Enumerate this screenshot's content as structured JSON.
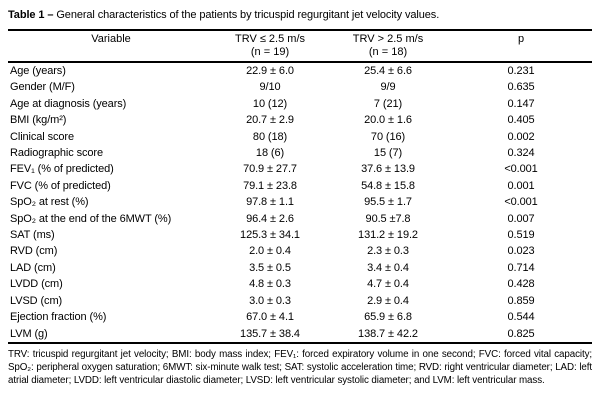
{
  "caption": {
    "label": "Table 1 –",
    "text": "General characteristics of the patients by tricuspid regurgitant jet velocity values."
  },
  "table": {
    "columns": [
      {
        "header": "Variable",
        "subheader": ""
      },
      {
        "header": "TRV ≤ 2.5 m/s",
        "subheader": "(n = 19)"
      },
      {
        "header": "TRV > 2.5 m/s",
        "subheader": "(n = 18)"
      },
      {
        "header": "p",
        "subheader": ""
      }
    ],
    "rows": [
      {
        "variable": "Age (years)",
        "group1": "22.9 ± 6.0",
        "group2": "25.4 ± 6.6",
        "p": "0.231"
      },
      {
        "variable": "Gender (M/F)",
        "group1": "9/10",
        "group2": "9/9",
        "p": "0.635"
      },
      {
        "variable": "Age at diagnosis (years)",
        "group1": "10 (12)",
        "group2": "7 (21)",
        "p": "0.147"
      },
      {
        "variable": "BMI (kg/m²)",
        "group1": "20.7 ± 2.9",
        "group2": "20.0 ± 1.6",
        "p": "0.405"
      },
      {
        "variable": "Clinical score",
        "group1": "80 (18)",
        "group2": "70 (16)",
        "p": "0.002"
      },
      {
        "variable": "Radiographic score",
        "group1": "18 (6)",
        "group2": "15 (7)",
        "p": "0.324"
      },
      {
        "variable": "FEV₁ (% of predicted)",
        "group1": "70.9 ± 27.7",
        "group2": "37.6 ± 13.9",
        "p": "<0.001"
      },
      {
        "variable": "FVC (% of predicted)",
        "group1": "79.1 ± 23.8",
        "group2": "54.8 ± 15.8",
        "p": "0.001"
      },
      {
        "variable": "SpO₂ at rest (%)",
        "group1": "97.8 ± 1.1",
        "group2": "95.5 ± 1.7",
        "p": "<0.001"
      },
      {
        "variable": "SpO₂ at the end of the 6MWT (%)",
        "group1": "96.4 ± 2.6",
        "group2": "90.5 ±7.8",
        "p": "0.007"
      },
      {
        "variable": "SAT (ms)",
        "group1": "125.3 ± 34.1",
        "group2": "131.2 ± 19.2",
        "p": "0.519"
      },
      {
        "variable": "RVD (cm)",
        "group1": "2.0 ± 0.4",
        "group2": "2.3 ± 0.3",
        "p": "0.023"
      },
      {
        "variable": "LAD (cm)",
        "group1": "3.5 ± 0.5",
        "group2": "3.4 ± 0.4",
        "p": "0.714"
      },
      {
        "variable": "LVDD (cm)",
        "group1": "4.8 ± 0.3",
        "group2": "4.7 ± 0.4",
        "p": "0.428"
      },
      {
        "variable": "LVSD (cm)",
        "group1": "3.0 ± 0.3",
        "group2": "2.9 ± 0.4",
        "p": "0.859"
      },
      {
        "variable": "Ejection fraction (%)",
        "group1": "67.0 ± 4.1",
        "group2": "65.9 ± 6.8",
        "p": "0.544"
      },
      {
        "variable": "LVM (g)",
        "group1": "135.7 ± 38.4",
        "group2": "138.7 ± 42.2",
        "p": "0.825"
      }
    ]
  },
  "footnote": "TRV: tricuspid regurgitant jet velocity; BMI: body mass index; FEV₁: forced expiratory volume in one second; FVC: forced vital capacity; SpO₂: peripheral oxygen saturation; 6MWT: six-minute walk test; SAT: systolic acceleration time; RVD: right ventricular diameter; LAD: left atrial diameter; LVDD: left ventricular diastolic diameter; LVSD: left ventricular systolic diameter; and LVM: left ventricular mass."
}
